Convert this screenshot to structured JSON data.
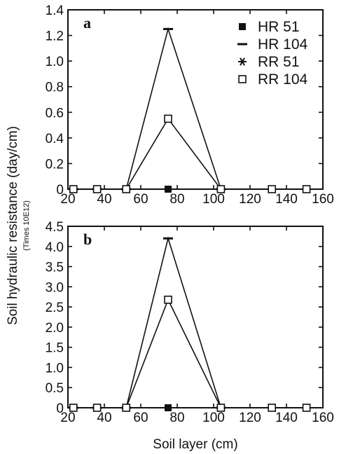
{
  "figure": {
    "ylabel": "Soil hydraulic resistance (day/cm)",
    "ylabel_sub": "(Times 10E12)",
    "xlabel": "Soil layer (cm)"
  },
  "chart_data": [
    {
      "type": "line",
      "panel_label": "a",
      "xlim": [
        20,
        160
      ],
      "ylim": [
        0,
        1.4
      ],
      "xticks": [
        20,
        40,
        60,
        80,
        100,
        120,
        140,
        160
      ],
      "yticks": [
        0,
        0.2,
        0.4,
        0.6,
        0.8,
        1.0,
        1.2,
        1.4
      ],
      "ytick_labels": [
        "0",
        "0.2",
        "0.4",
        "0.6",
        "0.8",
        "1.0",
        "1.2",
        "1.4"
      ],
      "legend_position": "top-right",
      "series": [
        {
          "name": "HR 51",
          "marker": "filled-square",
          "x": [
            23,
            36,
            52,
            75
          ],
          "y": [
            0,
            0,
            0,
            0
          ]
        },
        {
          "name": "HR 104",
          "marker": "dash",
          "x": [
            23,
            36,
            52,
            75,
            104
          ],
          "y": [
            0,
            0,
            0,
            1.25,
            0
          ]
        },
        {
          "name": "RR 51",
          "marker": "asterisk",
          "x": [
            23,
            36,
            52
          ],
          "y": [
            0,
            0,
            0
          ]
        },
        {
          "name": "RR 104",
          "marker": "open-square",
          "x": [
            23,
            36,
            52,
            75,
            104,
            132,
            151
          ],
          "y": [
            0,
            0,
            0,
            0.55,
            0,
            0,
            0
          ]
        }
      ]
    },
    {
      "type": "line",
      "panel_label": "b",
      "xlim": [
        20,
        160
      ],
      "ylim": [
        0,
        4.5
      ],
      "xticks": [
        20,
        40,
        60,
        80,
        100,
        120,
        140,
        160
      ],
      "yticks": [
        0,
        0.5,
        1.0,
        1.5,
        2.0,
        2.5,
        3.0,
        3.5,
        4.0,
        4.5
      ],
      "ytick_labels": [
        "0",
        "0.5",
        "1.0",
        "1.5",
        "2.0",
        "2.5",
        "3.0",
        "3.5",
        "4.0",
        "4.5"
      ],
      "series": [
        {
          "name": "HR 51",
          "marker": "filled-square",
          "x": [
            23,
            36,
            52,
            75
          ],
          "y": [
            0,
            0,
            0,
            0
          ]
        },
        {
          "name": "HR 104",
          "marker": "dash",
          "x": [
            23,
            36,
            52,
            75,
            104
          ],
          "y": [
            0,
            0,
            0,
            4.2,
            0
          ]
        },
        {
          "name": "RR 51",
          "marker": "asterisk",
          "x": [
            23,
            36,
            52
          ],
          "y": [
            0,
            0,
            0
          ]
        },
        {
          "name": "RR 104",
          "marker": "open-square",
          "x": [
            23,
            36,
            52,
            75,
            104,
            132,
            151
          ],
          "y": [
            0,
            0,
            0,
            2.68,
            0,
            0,
            0
          ]
        }
      ]
    }
  ]
}
